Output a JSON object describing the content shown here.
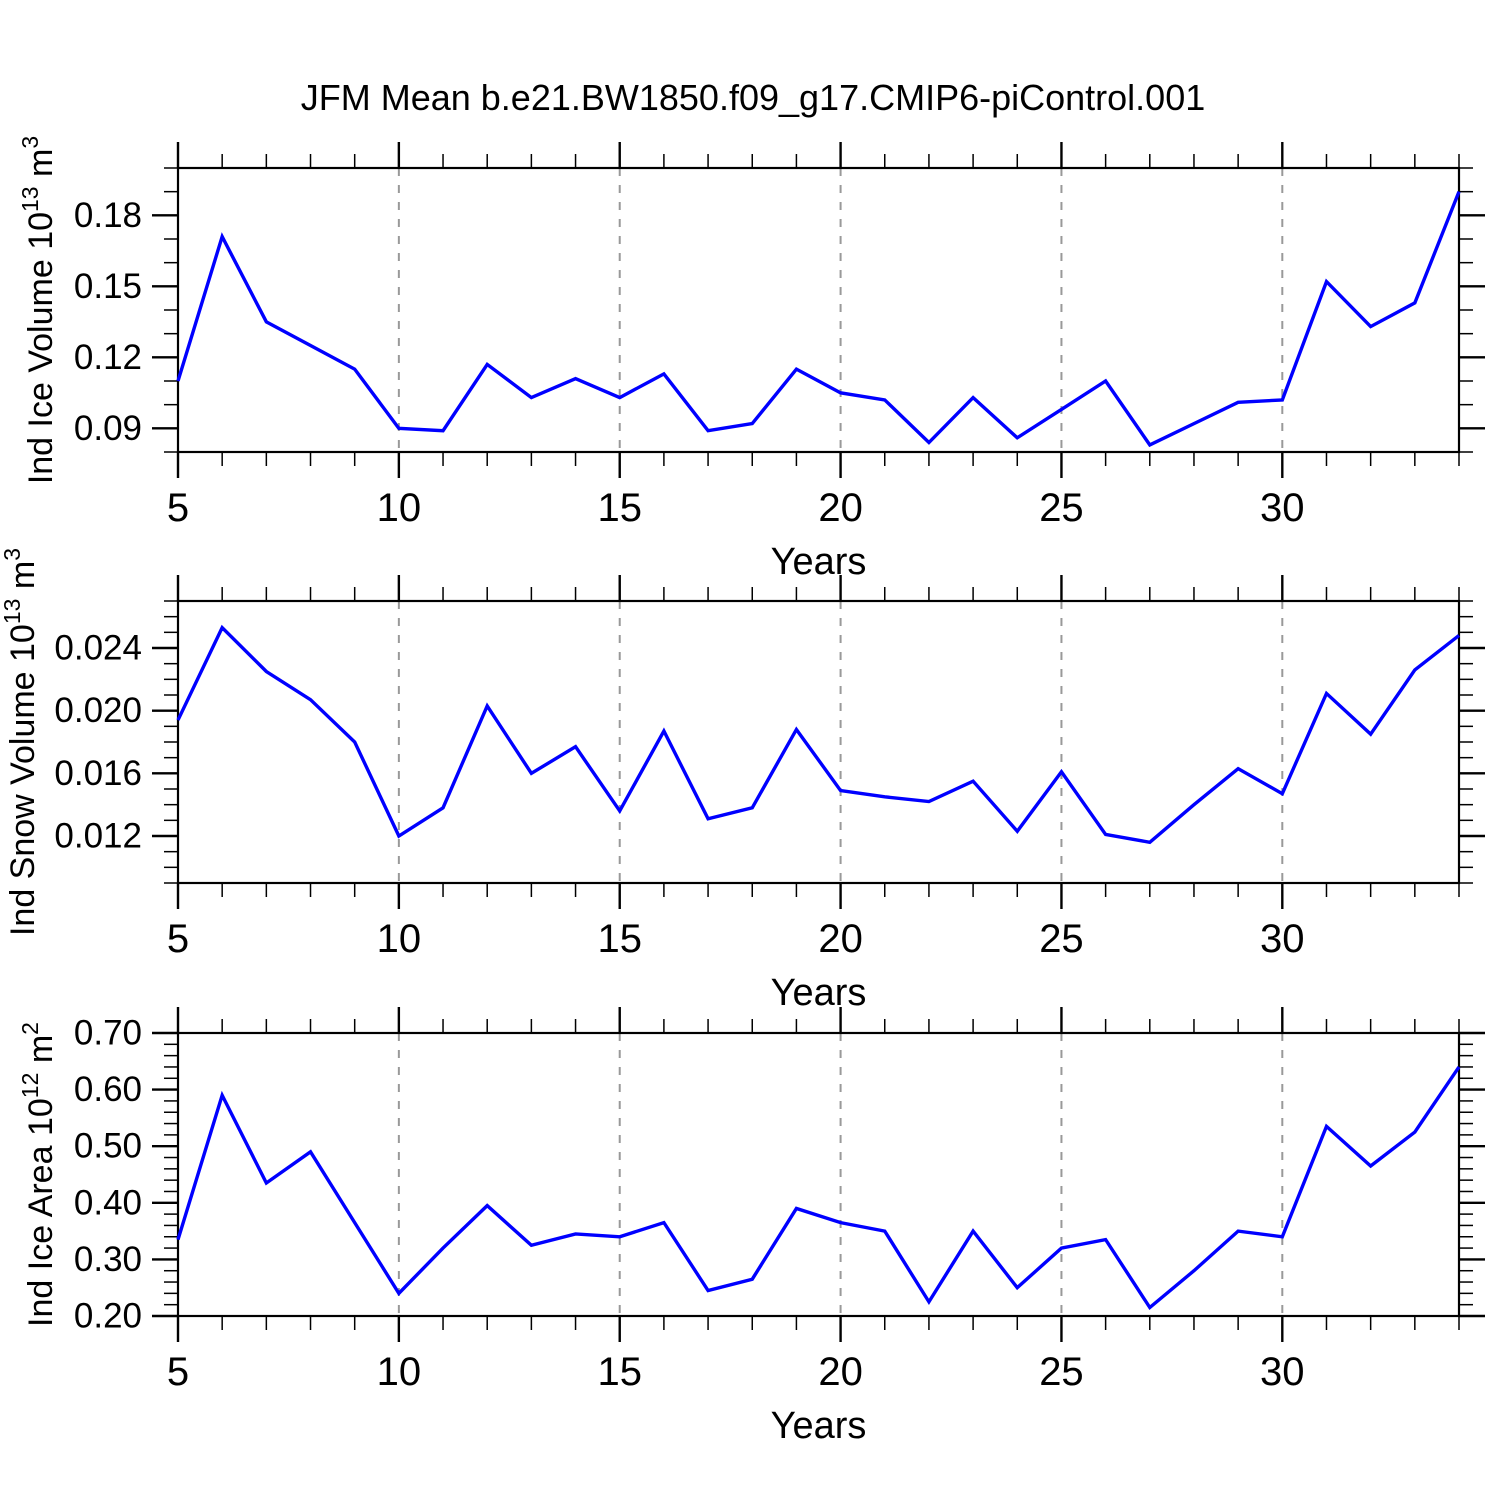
{
  "figure": {
    "title": "JFM Mean b.e21.BW1850.f09_g17.CMIP6-piControl.001",
    "background": "#ffffff",
    "text_color": "#000000",
    "frame_color": "#000000",
    "grid_color": "#999999"
  },
  "chart_data": [
    {
      "type": "line",
      "series_name": "ice-volume",
      "ylabel_text": "Ind Ice Volume 10^13 m^3",
      "ylabel_segments": [
        {
          "t": "Ind Ice Volume 10"
        },
        {
          "t": "13",
          "sup": true
        },
        {
          "t": " m"
        },
        {
          "t": "3",
          "sup": true
        }
      ],
      "xlabel": "Years",
      "x_start": 5,
      "x_end": 34,
      "values": [
        0.11,
        0.171,
        0.135,
        0.125,
        0.115,
        0.09,
        0.089,
        0.117,
        0.103,
        0.111,
        0.103,
        0.113,
        0.089,
        0.092,
        0.115,
        0.105,
        0.102,
        0.084,
        0.103,
        0.086,
        0.098,
        0.11,
        0.083,
        0.092,
        0.101,
        0.102,
        0.152,
        0.133,
        0.143,
        0.19
      ],
      "ylim": [
        0.08,
        0.2
      ],
      "yticks": {
        "major": [
          0.09,
          0.12,
          0.15,
          0.18
        ],
        "labels": [
          "0.09",
          "0.12",
          "0.15",
          "0.18"
        ],
        "minor_step": 0.01
      },
      "xticks": {
        "major": [
          5,
          10,
          15,
          20,
          25,
          30
        ],
        "labels": [
          "5",
          "10",
          "15",
          "20",
          "25",
          "30"
        ],
        "minor_step": 1
      },
      "grid_x": [
        10,
        15,
        20,
        25,
        30
      ],
      "grid_on": true,
      "legend": "none",
      "line_color": "#0000ff"
    },
    {
      "type": "line",
      "series_name": "snow-volume",
      "ylabel_text": "Ind Snow Volume 10^13 m^3",
      "ylabel_segments": [
        {
          "t": "Ind Snow Volume 10"
        },
        {
          "t": "13",
          "sup": true
        },
        {
          "t": " m"
        },
        {
          "t": "3",
          "sup": true
        }
      ],
      "xlabel": "Years",
      "x_start": 5,
      "x_end": 34,
      "values": [
        0.0194,
        0.0253,
        0.0225,
        0.0207,
        0.018,
        0.012,
        0.0138,
        0.0203,
        0.016,
        0.0177,
        0.0136,
        0.0187,
        0.0131,
        0.0138,
        0.0188,
        0.0149,
        0.0145,
        0.0142,
        0.0155,
        0.0123,
        0.0161,
        0.0121,
        0.0116,
        0.014,
        0.0163,
        0.0147,
        0.0211,
        0.0185,
        0.0226,
        0.0248
      ],
      "ylim": [
        0.009,
        0.027
      ],
      "yticks": {
        "major": [
          0.012,
          0.016,
          0.02,
          0.024
        ],
        "labels": [
          "0.012",
          "0.016",
          "0.020",
          "0.024"
        ],
        "minor_step": 0.001
      },
      "xticks": {
        "major": [
          5,
          10,
          15,
          20,
          25,
          30
        ],
        "labels": [
          "5",
          "10",
          "15",
          "20",
          "25",
          "30"
        ],
        "minor_step": 1
      },
      "grid_x": [
        10,
        15,
        20,
        25,
        30
      ],
      "grid_on": true,
      "legend": "none",
      "line_color": "#0000ff"
    },
    {
      "type": "line",
      "series_name": "ice-area",
      "ylabel_text": "Ind Ice Area 10^12 m^2",
      "ylabel_segments": [
        {
          "t": "Ind Ice Area 10"
        },
        {
          "t": "12",
          "sup": true
        },
        {
          "t": " m"
        },
        {
          "t": "2",
          "sup": true
        }
      ],
      "xlabel": "Years",
      "x_start": 5,
      "x_end": 34,
      "values": [
        0.335,
        0.59,
        0.435,
        0.49,
        0.365,
        0.24,
        0.32,
        0.395,
        0.325,
        0.345,
        0.34,
        0.365,
        0.245,
        0.265,
        0.39,
        0.365,
        0.35,
        0.225,
        0.35,
        0.25,
        0.32,
        0.335,
        0.215,
        0.28,
        0.35,
        0.34,
        0.535,
        0.465,
        0.525,
        0.64
      ],
      "ylim": [
        0.2,
        0.7
      ],
      "yticks": {
        "major": [
          0.2,
          0.3,
          0.4,
          0.5,
          0.6,
          0.7
        ],
        "labels": [
          "0.20",
          "0.30",
          "0.40",
          "0.50",
          "0.60",
          "0.70"
        ],
        "minor_step": 0.02
      },
      "xticks": {
        "major": [
          5,
          10,
          15,
          20,
          25,
          30
        ],
        "labels": [
          "5",
          "10",
          "15",
          "20",
          "25",
          "30"
        ],
        "minor_step": 1
      },
      "grid_x": [
        10,
        15,
        20,
        25,
        30
      ],
      "grid_on": true,
      "legend": "none",
      "line_color": "#0000ff"
    }
  ]
}
